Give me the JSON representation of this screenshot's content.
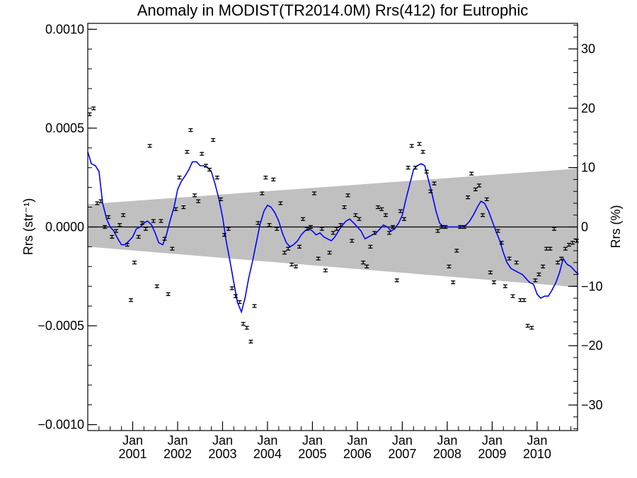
{
  "chart_data": {
    "type": "scatter",
    "title": "Anomaly in MODIST(TR2014.0M) Rrs(412) for Eutrophic",
    "ylabel_left": "Rrs (str⁻¹)",
    "ylabel_right": "Rrs (%)",
    "xlim": [
      2000.0,
      2010.9
    ],
    "ylim": [
      -0.00103,
      0.00103
    ],
    "ylim_right_percent": [
      -34.3,
      34.3
    ],
    "yticks_left": [
      "0.0010",
      "0.0005",
      "0.0000",
      "−0.0005",
      "−0.0010"
    ],
    "yticks_left_values": [
      0.001,
      0.0005,
      0,
      -0.0005,
      -0.001
    ],
    "yticks_right": [
      "30",
      "20",
      "10",
      "0",
      "−10",
      "−20",
      "−30"
    ],
    "yticks_right_values": [
      30,
      20,
      10,
      0,
      -10,
      -20,
      -30
    ],
    "xticks": [
      {
        "month": "Jan",
        "year": "2001",
        "x": 2001.0
      },
      {
        "month": "Jan",
        "year": "2002",
        "x": 2002.0
      },
      {
        "month": "Jan",
        "year": "2003",
        "x": 2003.0
      },
      {
        "month": "Jan",
        "year": "2004",
        "x": 2004.0
      },
      {
        "month": "Jan",
        "year": "2005",
        "x": 2005.0
      },
      {
        "month": "Jan",
        "year": "2006",
        "x": 2006.0
      },
      {
        "month": "Jan",
        "year": "2007",
        "x": 2007.0
      },
      {
        "month": "Jan",
        "year": "2008",
        "x": 2008.0
      },
      {
        "month": "Jan",
        "year": "2009",
        "x": 2009.0
      },
      {
        "month": "Jan",
        "year": "2010",
        "x": 2010.0
      }
    ],
    "uncertainty_band": {
      "x": [
        2000.0,
        2010.9
      ],
      "upper": [
        0.000115,
        0.000295
      ],
      "lower": [
        -0.0001,
        -0.000305
      ],
      "color": "#c0c0c0"
    },
    "zero_line": 0,
    "points": {
      "error": 7e-06,
      "color": "#000000",
      "x": [
        2000.04,
        2000.13,
        2000.21,
        2000.29,
        2000.38,
        2000.46,
        2000.54,
        2000.63,
        2000.71,
        2000.79,
        2000.88,
        2000.96,
        2001.04,
        2001.13,
        2001.21,
        2001.29,
        2001.38,
        2001.46,
        2001.54,
        2001.63,
        2001.71,
        2001.79,
        2001.88,
        2001.96,
        2002.04,
        2002.13,
        2002.21,
        2002.29,
        2002.38,
        2002.46,
        2002.54,
        2002.63,
        2002.71,
        2002.79,
        2002.88,
        2002.96,
        2003.04,
        2003.13,
        2003.21,
        2003.29,
        2003.38,
        2003.46,
        2003.54,
        2003.63,
        2003.71,
        2003.79,
        2003.88,
        2003.96,
        2004.04,
        2004.13,
        2004.21,
        2004.29,
        2004.38,
        2004.46,
        2004.54,
        2004.63,
        2004.71,
        2004.79,
        2004.88,
        2004.96,
        2005.04,
        2005.13,
        2005.21,
        2005.29,
        2005.38,
        2005.46,
        2005.54,
        2005.63,
        2005.71,
        2005.79,
        2005.88,
        2005.96,
        2006.04,
        2006.13,
        2006.21,
        2006.29,
        2006.38,
        2006.46,
        2006.54,
        2006.63,
        2006.71,
        2006.79,
        2006.88,
        2006.96,
        2007.04,
        2007.13,
        2007.21,
        2007.29,
        2007.38,
        2007.46,
        2007.54,
        2007.63,
        2007.71,
        2007.79,
        2007.88,
        2007.96,
        2008.04,
        2008.13,
        2008.21,
        2008.29,
        2008.38,
        2008.46,
        2008.54,
        2008.63,
        2008.71,
        2008.79,
        2008.88,
        2008.96,
        2009.04,
        2009.13,
        2009.21,
        2009.29,
        2009.38,
        2009.46,
        2009.54,
        2009.63,
        2009.71,
        2009.79,
        2009.88,
        2009.96,
        2010.04,
        2010.13,
        2010.21,
        2010.29,
        2010.38,
        2010.46,
        2010.54,
        2010.63,
        2010.71,
        2010.79,
        2010.88
      ],
      "y": [
        0.00057,
        0.0006,
        0.00012,
        0.00013,
        0.0,
        5e-05,
        -5e-05,
        -2e-05,
        1e-05,
        6e-05,
        -9e-05,
        -0.00037,
        -0.00018,
        -5e-05,
        2e-05,
        -1e-05,
        0.00041,
        3e-05,
        -0.0003,
        3e-05,
        -6e-05,
        -0.00034,
        -0.00011,
        9e-05,
        0.00025,
        0.0001,
        0.00038,
        0.00049,
        0.00016,
        0.00013,
        0.00037,
        0.00031,
        0.00029,
        0.00044,
        0.00025,
        0.00014,
        -4e-05,
        -1e-05,
        -0.00031,
        -0.00035,
        -0.00038,
        -0.00049,
        -0.00051,
        -0.00058,
        -0.0004,
        2e-05,
        0.00017,
        0.00025,
        1e-05,
        0.00024,
        -1e-05,
        0.00012,
        -0.00013,
        -0.00011,
        -0.00019,
        -0.0002,
        -0.0001,
        4e-05,
        -1e-05,
        0.0,
        0.00017,
        -0.00016,
        -1e-05,
        -0.00022,
        -0.00013,
        -3e-05,
        -1e-05,
        1e-05,
        0.0001,
        0.00016,
        -7e-05,
        6e-05,
        4e-05,
        -0.00018,
        -0.0002,
        -0.0001,
        -3e-05,
        0.0001,
        9e-05,
        6e-05,
        -3e-05,
        0.0,
        -0.00027,
        8e-05,
        4e-05,
        0.0003,
        0.00041,
        0.0003,
        0.00042,
        0.00038,
        0.00028,
        0.00018,
        0.00022,
        -2e-05,
        0.0,
        0.0,
        -0.0002,
        -0.00028,
        -0.00012,
        0.0,
        0.0,
        0.00015,
        0.00027,
        0.00019,
        0.00021,
        6e-05,
        0.00014,
        -0.00023,
        -0.00028,
        -2e-05,
        -8e-05,
        -0.0003,
        -0.00016,
        -0.00035,
        -0.00018,
        -0.00037,
        -0.00037,
        -0.0005,
        -0.00051,
        -0.00027,
        -0.00024,
        -0.0002,
        -0.00011,
        -0.00011,
        -1e-05,
        -0.00018,
        -0.00016,
        -0.00011,
        -9e-05,
        -8e-05,
        -7e-05
      ],
      "count": 131
    },
    "running_mean": {
      "color": "#0000ff",
      "x": [
        2000.0,
        2000.08,
        2000.17,
        2000.25,
        2000.33,
        2000.42,
        2000.5,
        2000.58,
        2000.67,
        2000.75,
        2000.83,
        2000.92,
        2001.0,
        2001.08,
        2001.17,
        2001.25,
        2001.33,
        2001.42,
        2001.5,
        2001.58,
        2001.67,
        2001.75,
        2001.83,
        2001.92,
        2002.0,
        2002.08,
        2002.17,
        2002.25,
        2002.33,
        2002.42,
        2002.5,
        2002.58,
        2002.67,
        2002.75,
        2002.83,
        2002.92,
        2003.0,
        2003.08,
        2003.17,
        2003.25,
        2003.33,
        2003.42,
        2003.5,
        2003.58,
        2003.67,
        2003.75,
        2003.83,
        2003.92,
        2004.0,
        2004.08,
        2004.17,
        2004.25,
        2004.33,
        2004.42,
        2004.5,
        2004.58,
        2004.67,
        2004.75,
        2004.83,
        2004.92,
        2005.0,
        2005.08,
        2005.17,
        2005.25,
        2005.33,
        2005.42,
        2005.5,
        2005.58,
        2005.67,
        2005.75,
        2005.83,
        2005.92,
        2006.0,
        2006.08,
        2006.17,
        2006.25,
        2006.33,
        2006.42,
        2006.5,
        2006.58,
        2006.67,
        2006.75,
        2006.83,
        2006.92,
        2007.0,
        2007.08,
        2007.17,
        2007.25,
        2007.33,
        2007.42,
        2007.5,
        2007.58,
        2007.67,
        2007.75,
        2007.83,
        2007.92,
        2008.0,
        2008.08,
        2008.17,
        2008.25,
        2008.33,
        2008.42,
        2008.5,
        2008.58,
        2008.67,
        2008.75,
        2008.83,
        2008.92,
        2009.0,
        2009.08,
        2009.17,
        2009.25,
        2009.33,
        2009.42,
        2009.5,
        2009.58,
        2009.67,
        2009.75,
        2009.83,
        2009.92,
        2010.0,
        2010.08,
        2010.17,
        2010.25,
        2010.33,
        2010.42,
        2010.5,
        2010.58,
        2010.67,
        2010.75,
        2010.83,
        2010.92
      ],
      "y": [
        0.00038,
        0.00032,
        0.00031,
        0.00028,
        0.00012,
        4e-05,
        0.0,
        -2e-05,
        -6e-05,
        -9e-05,
        -9e-05,
        -7e-05,
        -5e-05,
        -1e-05,
        0.0,
        2e-05,
        3e-05,
        1e-05,
        -3e-05,
        -8e-05,
        -9e-05,
        -4e-05,
        3e-05,
        0.0001,
        0.00019,
        0.00023,
        0.00026,
        0.00029,
        0.00033,
        0.00033,
        0.00031,
        0.00031,
        0.0003,
        0.00028,
        0.00022,
        0.00014,
        5e-05,
        -7e-05,
        -0.00018,
        -0.00028,
        -0.00038,
        -0.00043,
        -0.00036,
        -0.00026,
        -0.00017,
        -8e-05,
        1e-05,
        8e-05,
        0.00011,
        0.0001,
        7e-05,
        3e-05,
        -3e-05,
        -8e-05,
        -0.0001,
        -9e-05,
        -7e-05,
        -4e-05,
        -2e-05,
        -1e-05,
        -2e-05,
        -4e-05,
        -3e-05,
        -5e-05,
        -6e-05,
        -7e-05,
        -5e-05,
        -2e-05,
        1e-05,
        3e-05,
        4e-05,
        2e-05,
        0.0,
        -2e-05,
        -6e-05,
        -5e-05,
        -4e-05,
        -3e-05,
        -1e-05,
        1e-05,
        0.0,
        -2e-05,
        -1e-05,
        2e-05,
        6e-05,
        0.00014,
        0.00022,
        0.00029,
        0.00031,
        0.00032,
        0.00031,
        0.00024,
        0.00016,
        8e-05,
        2e-05,
        0.0,
        0.0,
        0.0,
        0.0,
        0.0,
        0.0,
        1e-05,
        3e-05,
        6e-05,
        0.0001,
        0.00013,
        0.00012,
        8e-05,
        3e-05,
        -2e-05,
        -7e-05,
        -0.00013,
        -0.00018,
        -0.00021,
        -0.00022,
        -0.00023,
        -0.00024,
        -0.00026,
        -0.00028,
        -0.00029,
        -0.00034,
        -0.00036,
        -0.00035,
        -0.00035,
        -0.00032,
        -0.00028,
        -0.00023,
        -0.00016,
        -0.00019,
        -0.0002,
        -0.00022,
        -0.00024
      ]
    }
  }
}
